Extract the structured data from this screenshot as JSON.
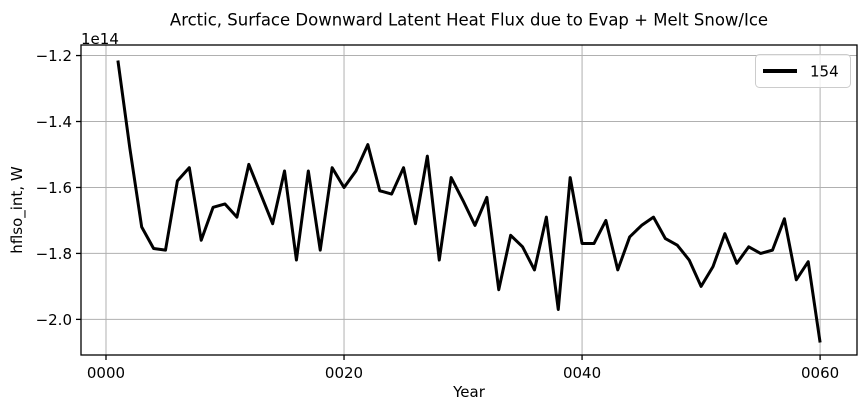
{
  "figure": {
    "background": "#ffffff"
  },
  "chart_data": {
    "type": "line",
    "title": "Arctic, Surface Downward Latent Heat Flux due to Evap + Melt Snow/Ice",
    "xlabel": "Year",
    "ylabel": "hflso_int, W",
    "y_offset_text": "1e14",
    "values_unit": "W",
    "values_scale": "1e14",
    "grid": true,
    "legend": {
      "position": "upper right"
    },
    "xlim": [
      -2.1,
      63.1
    ],
    "ylim": [
      -2.108,
      -1.168
    ],
    "xticks": {
      "values": [
        0,
        20,
        40,
        60
      ],
      "labels": [
        "0000",
        "0020",
        "0040",
        "0060"
      ]
    },
    "yticks": {
      "values": [
        -2.0,
        -1.8,
        -1.6,
        -1.4,
        -1.2
      ],
      "labels": [
        "−2.0",
        "−1.8",
        "−1.6",
        "−1.4",
        "−1.2"
      ]
    },
    "x": [
      1,
      2,
      3,
      4,
      5,
      6,
      7,
      8,
      9,
      10,
      11,
      12,
      13,
      14,
      15,
      16,
      17,
      18,
      19,
      20,
      21,
      22,
      23,
      24,
      25,
      26,
      27,
      28,
      29,
      30,
      31,
      32,
      33,
      34,
      35,
      36,
      37,
      38,
      39,
      40,
      41,
      42,
      43,
      44,
      45,
      46,
      47,
      48,
      49,
      50,
      51,
      52,
      53,
      54,
      55,
      56,
      57,
      58,
      59,
      60
    ],
    "series": [
      {
        "name": "154",
        "color": "#000000",
        "linewidth": 3,
        "values": [
          -1.215,
          -1.48,
          -1.72,
          -1.785,
          -1.79,
          -1.58,
          -1.54,
          -1.76,
          -1.66,
          -1.65,
          -1.69,
          -1.53,
          -1.62,
          -1.71,
          -1.55,
          -1.82,
          -1.55,
          -1.79,
          -1.54,
          -1.6,
          -1.55,
          -1.47,
          -1.61,
          -1.62,
          -1.54,
          -1.71,
          -1.505,
          -1.82,
          -1.57,
          -1.64,
          -1.715,
          -1.63,
          -1.91,
          -1.745,
          -1.78,
          -1.85,
          -1.69,
          -1.97,
          -1.57,
          -1.77,
          -1.77,
          -1.7,
          -1.85,
          -1.75,
          -1.715,
          -1.69,
          -1.755,
          -1.775,
          -1.82,
          -1.9,
          -1.84,
          -1.74,
          -1.83,
          -1.78,
          -1.8,
          -1.79,
          -1.695,
          -1.88,
          -1.825,
          -2.07
        ]
      }
    ]
  },
  "colors": {
    "line": "#000000",
    "grid": "#b0b0b0",
    "spine": "#000000",
    "legend_edge": "#cccccc",
    "legend_fill": "#ffffff",
    "text": "#000000"
  }
}
